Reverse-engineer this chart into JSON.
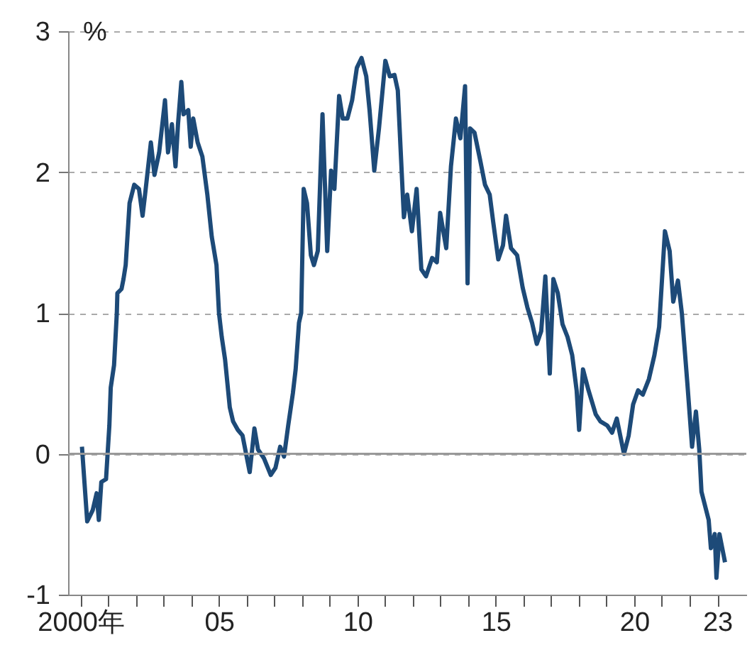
{
  "chart_data": {
    "type": "line",
    "ylabel": "%",
    "x": [
      2000.05,
      2000.24,
      2000.44,
      2000.58,
      2000.66,
      2000.75,
      2000.92,
      2001.04,
      2001.09,
      2001.21,
      2001.31,
      2001.33,
      2001.48,
      2001.55,
      2001.63,
      2001.77,
      2001.94,
      2002.11,
      2002.24,
      2002.33,
      2002.54,
      2002.67,
      2002.84,
      2003.05,
      2003.16,
      2003.3,
      2003.43,
      2003.52,
      2003.64,
      2003.72,
      2003.89,
      2003.98,
      2004.07,
      2004.23,
      2004.4,
      2004.58,
      2004.74,
      2004.91,
      2005.0,
      2005.1,
      2005.22,
      2005.39,
      2005.51,
      2005.68,
      2005.85,
      2006.11,
      2006.28,
      2006.41,
      2006.62,
      2006.87,
      2007.04,
      2007.21,
      2007.35,
      2007.5,
      2007.67,
      2007.77,
      2007.89,
      2007.97,
      2008.06,
      2008.18,
      2008.32,
      2008.43,
      2008.57,
      2008.74,
      2008.91,
      2009.05,
      2009.17,
      2009.34,
      2009.47,
      2009.64,
      2009.81,
      2009.98,
      2010.15,
      2010.32,
      2010.44,
      2010.61,
      2010.78,
      2011.01,
      2011.17,
      2011.34,
      2011.46,
      2011.63,
      2011.68,
      2011.8,
      2011.97,
      2012.14,
      2012.31,
      2012.48,
      2012.7,
      2012.87,
      2012.99,
      2013.21,
      2013.38,
      2013.56,
      2013.72,
      2013.89,
      2013.98,
      2014.07,
      2014.23,
      2014.44,
      2014.61,
      2014.78,
      2014.91,
      2015.09,
      2015.26,
      2015.37,
      2015.55,
      2015.77,
      2015.97,
      2016.14,
      2016.31,
      2016.48,
      2016.64,
      2016.79,
      2016.95,
      2017.08,
      2017.24,
      2017.41,
      2017.59,
      2017.76,
      2017.92,
      2018.01,
      2018.15,
      2018.35,
      2018.61,
      2018.78,
      2019.03,
      2019.2,
      2019.37,
      2019.63,
      2019.8,
      2019.96,
      2020.14,
      2020.31,
      2020.53,
      2020.73,
      2020.9,
      2021.11,
      2021.28,
      2021.41,
      2021.58,
      2021.72,
      2021.92,
      2022.09,
      2022.23,
      2022.35,
      2022.43,
      2022.69,
      2022.77,
      2022.91,
      2022.97,
      2023.08,
      2023.28
    ],
    "series": [
      {
        "color": "#1d4a78",
        "values": [
          0.05,
          -0.48,
          -0.4,
          -0.28,
          -0.47,
          -0.2,
          -0.18,
          0.2,
          0.47,
          0.63,
          1.0,
          1.14,
          1.17,
          1.24,
          1.34,
          1.78,
          1.91,
          1.88,
          1.69,
          1.84,
          2.21,
          1.98,
          2.14,
          2.51,
          2.14,
          2.34,
          2.04,
          2.34,
          2.64,
          2.41,
          2.44,
          2.18,
          2.38,
          2.21,
          2.11,
          1.84,
          1.54,
          1.34,
          1.0,
          0.83,
          0.67,
          0.33,
          0.23,
          0.17,
          0.13,
          -0.13,
          0.18,
          0.03,
          -0.03,
          -0.15,
          -0.1,
          0.05,
          -0.02,
          0.2,
          0.43,
          0.6,
          0.93,
          1.0,
          1.88,
          1.78,
          1.41,
          1.34,
          1.44,
          2.41,
          1.44,
          2.01,
          1.88,
          2.54,
          2.38,
          2.38,
          2.51,
          2.74,
          2.81,
          2.68,
          2.44,
          2.01,
          2.31,
          2.79,
          2.68,
          2.69,
          2.58,
          1.88,
          1.68,
          1.84,
          1.58,
          1.88,
          1.31,
          1.26,
          1.39,
          1.36,
          1.71,
          1.46,
          2.04,
          2.38,
          2.24,
          2.61,
          1.21,
          2.31,
          2.28,
          2.08,
          1.91,
          1.84,
          1.64,
          1.38,
          1.48,
          1.69,
          1.46,
          1.41,
          1.18,
          1.04,
          0.93,
          0.78,
          0.87,
          1.26,
          0.57,
          1.24,
          1.14,
          0.92,
          0.83,
          0.7,
          0.45,
          0.17,
          0.6,
          0.45,
          0.28,
          0.23,
          0.2,
          0.15,
          0.25,
          0.0,
          0.13,
          0.35,
          0.45,
          0.42,
          0.53,
          0.7,
          0.9,
          1.58,
          1.44,
          1.08,
          1.23,
          1.0,
          0.5,
          0.05,
          0.3,
          0.03,
          -0.27,
          -0.47,
          -0.67,
          -0.57,
          -0.88,
          -0.57,
          -0.77
        ]
      }
    ],
    "xlim": [
      1999.55,
      2024.05
    ],
    "xticks": [
      {
        "value": 2000,
        "label": "2000年"
      },
      {
        "value": 2001,
        "label": null
      },
      {
        "value": 2002,
        "label": null
      },
      {
        "value": 2003,
        "label": null
      },
      {
        "value": 2004,
        "label": null
      },
      {
        "value": 2005,
        "label": "05"
      },
      {
        "value": 2006,
        "label": null
      },
      {
        "value": 2007,
        "label": null
      },
      {
        "value": 2008,
        "label": null
      },
      {
        "value": 2009,
        "label": null
      },
      {
        "value": 2010,
        "label": "10"
      },
      {
        "value": 2011,
        "label": null
      },
      {
        "value": 2012,
        "label": null
      },
      {
        "value": 2013,
        "label": null
      },
      {
        "value": 2014,
        "label": null
      },
      {
        "value": 2015,
        "label": "15"
      },
      {
        "value": 2016,
        "label": null
      },
      {
        "value": 2017,
        "label": null
      },
      {
        "value": 2018,
        "label": null
      },
      {
        "value": 2019,
        "label": null
      },
      {
        "value": 2020,
        "label": "20"
      },
      {
        "value": 2021,
        "label": null
      },
      {
        "value": 2022,
        "label": null
      },
      {
        "value": 2023,
        "label": "23"
      }
    ],
    "ylim": [
      -1,
      3
    ],
    "yticks": [
      -1,
      0,
      1,
      2,
      3
    ],
    "grid": "y",
    "ref_lines": [
      {
        "axis": "y",
        "value": 0,
        "color": "#999999",
        "line_style": "solid"
      }
    ],
    "line_style": "solid",
    "marker": "none"
  }
}
